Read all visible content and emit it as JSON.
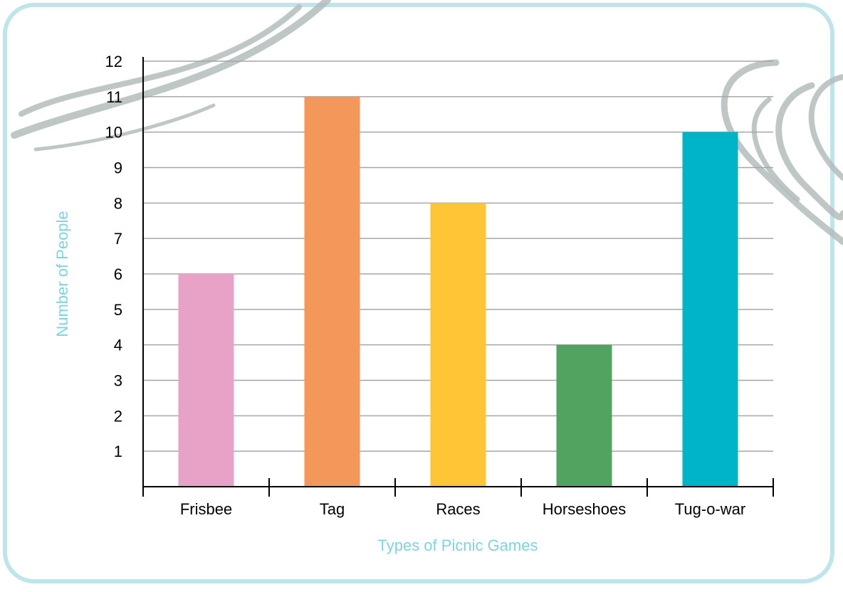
{
  "chart_data": {
    "type": "bar",
    "categories": [
      "Frisbee",
      "Tag",
      "Races",
      "Horseshoes",
      "Tug-o-war"
    ],
    "values": [
      6,
      11,
      8,
      4,
      10
    ],
    "colors": [
      "#e8a2c8",
      "#f4975a",
      "#fec637",
      "#52a360",
      "#00b4c8"
    ],
    "xlabel": "Types of Picnic Games",
    "ylabel": "Number of People",
    "ylim": [
      0,
      12
    ],
    "yticks": [
      1,
      2,
      3,
      4,
      5,
      6,
      7,
      8,
      9,
      10,
      11,
      12
    ],
    "grid": true
  },
  "theme": {
    "frame_color": "#bfe4ea",
    "axis_title_color": "#7fd2de",
    "grid_color": "#a6a6a6",
    "swoosh_color": "#b3bcbc"
  }
}
